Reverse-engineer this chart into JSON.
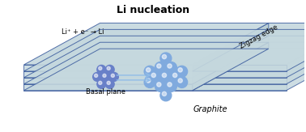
{
  "title": "Li nucleation",
  "graphite_label": "Graphite",
  "basal_plane_label": "Basal plane",
  "zigzag_label": "Zigzag edge",
  "reaction_label": "Li⁺ + e⁻ → Li",
  "bg_color": "#ffffff",
  "layer_face_color": "#c5d8de",
  "layer_face_color2": "#b8cdd4",
  "layer_edge_color": "#4060a0",
  "title_fontsize": 9,
  "label_fontsize": 7,
  "small_fontsize": 6,
  "atom_color_small": "#6880c8",
  "atom_color_large": "#80aade",
  "arrow_color": "#90bce8",
  "n_layers": 5
}
